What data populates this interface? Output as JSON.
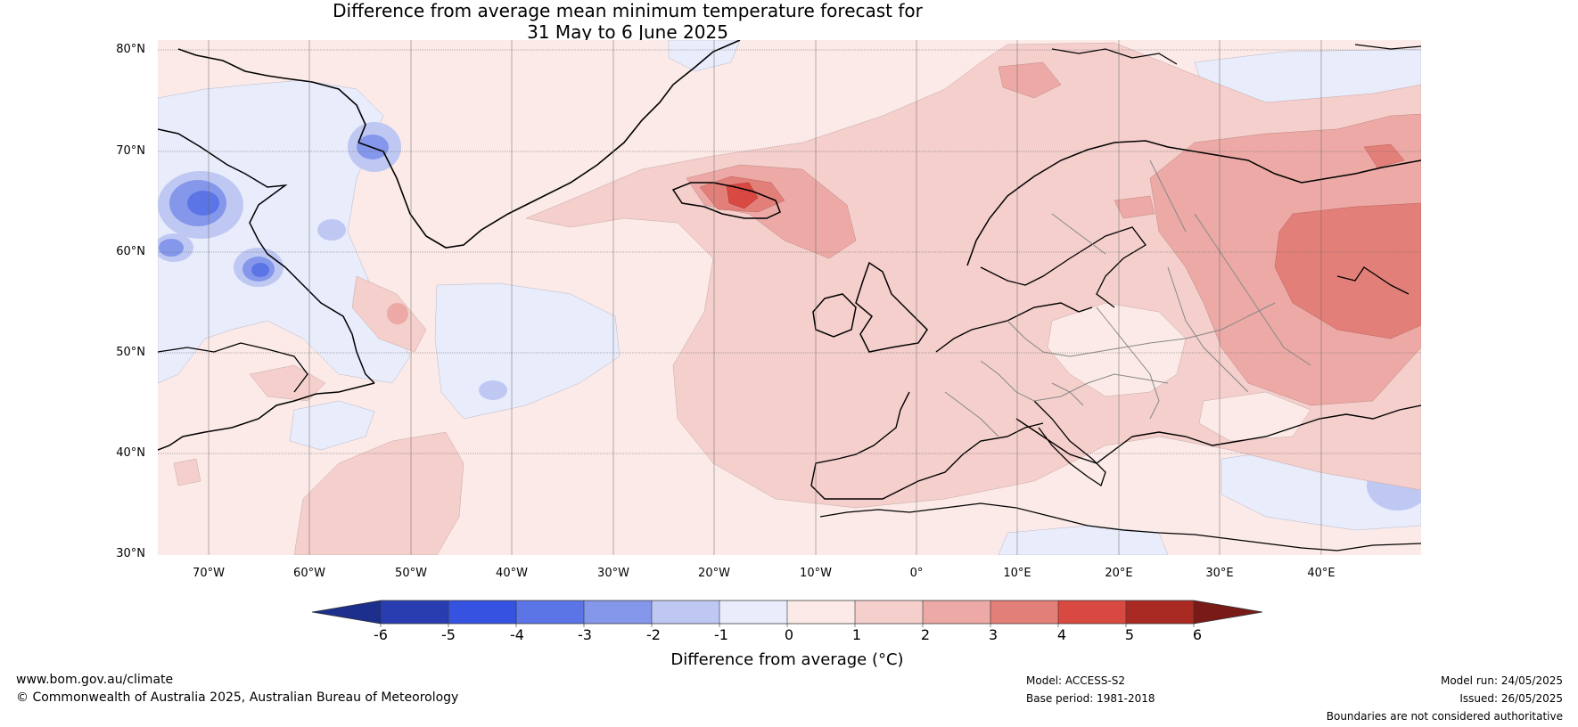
{
  "title": {
    "line1": "Difference from average mean minimum temperature forecast for",
    "line2": "31 May to 6 June 2025"
  },
  "map": {
    "latitude_labels": [
      "80°N",
      "70°N",
      "60°N",
      "50°N",
      "40°N",
      "30°N"
    ],
    "longitude_labels": [
      "70°W",
      "60°W",
      "50°W",
      "40°W",
      "30°W",
      "20°W",
      "10°W",
      "0°",
      "10°E",
      "20°E",
      "30°E",
      "40°E"
    ],
    "extent": {
      "lon_min": -75,
      "lon_max": 50,
      "lat_min": 30,
      "lat_max": 81
    }
  },
  "colorbar": {
    "ticks": [
      "-6",
      "-5",
      "-4",
      "-3",
      "-2",
      "-1",
      "0",
      "1",
      "2",
      "3",
      "4",
      "5",
      "6"
    ],
    "label": "Difference from average (°C)",
    "colors": [
      "#1c2f8c",
      "#2a3db0",
      "#3553e0",
      "#5b74e6",
      "#8497eb",
      "#bfc8f3",
      "#e8ecfb",
      "#fbeae8",
      "#f4cfcc",
      "#eca9a5",
      "#e37f79",
      "#d84a41",
      "#a82a23",
      "#7a1a16"
    ]
  },
  "footer": {
    "website": "www.bom.gov.au/climate",
    "copyright": "© Commonwealth of Australia 2025, Australian Bureau of Meteorology",
    "model": "Model: ACCESS-S2",
    "base_period": "Base period: 1981-2018",
    "model_run": "Model run: 24/05/2025",
    "issued": "Issued: 26/05/2025",
    "disclaimer": "Boundaries are not considered authoritative"
  }
}
